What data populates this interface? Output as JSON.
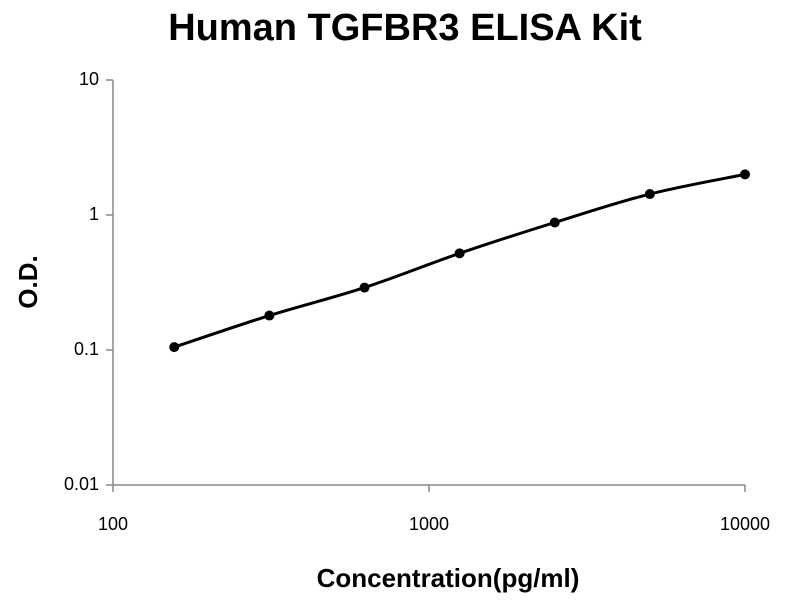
{
  "chart_data": {
    "type": "scatter-line",
    "title": "Human TGFBR3 ELISA Kit",
    "x_label": "Concentration(pg/ml)",
    "y_label": "O.D.",
    "x": [
      156.25,
      312.5,
      625,
      1250,
      2500,
      5000,
      10000
    ],
    "values": [
      0.105,
      0.18,
      0.29,
      0.52,
      0.88,
      1.43,
      2.0
    ],
    "color": "#000000",
    "xscale": "log",
    "yscale": "log",
    "xlim": [
      100,
      10000
    ],
    "xticks": [
      100,
      1000,
      10000
    ],
    "ylim": [
      0.01,
      10
    ],
    "yticks": [
      0.01,
      0.1,
      1,
      10
    ],
    "grid": false
  }
}
